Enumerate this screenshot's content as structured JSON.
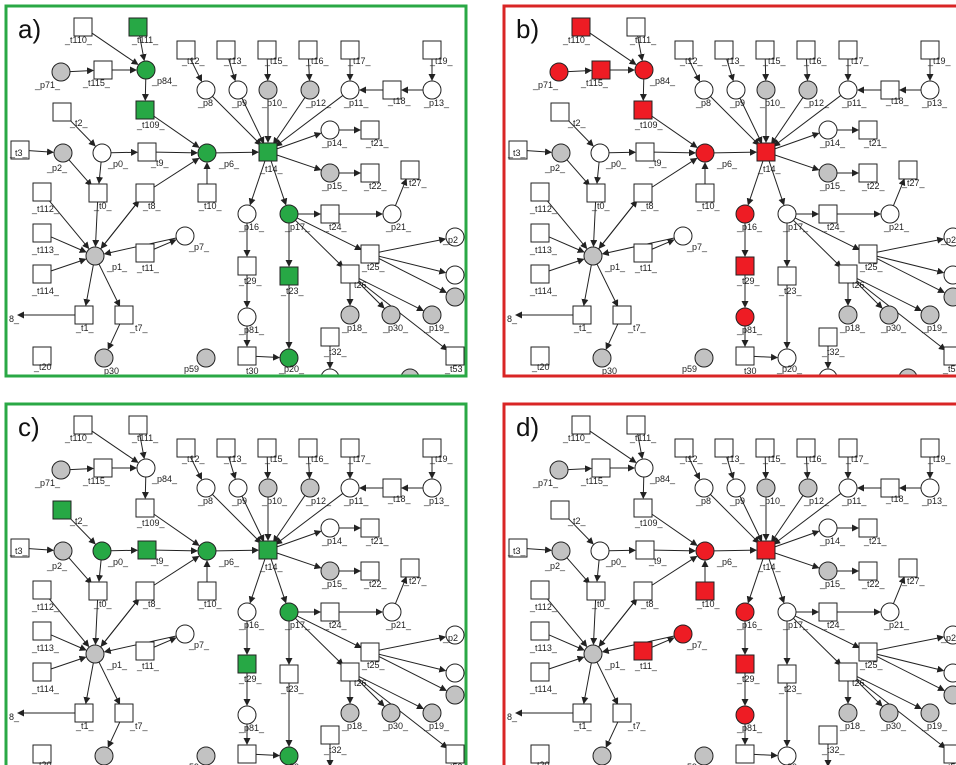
{
  "colors": {
    "green_frame": "#2aa845",
    "red_frame": "#d92525",
    "green_fill": "#27a845",
    "red_fill": "#ee1c24",
    "grey_place": "#c2c2c2",
    "white": "#ffffff",
    "stroke": "#222222"
  },
  "labels": {
    "t110": "_t110_",
    "t111": "_t111_",
    "t115": "_t115_",
    "t109": "_t109_",
    "t2": "_t2_",
    "t3": "_t3_",
    "t9": "_t9_",
    "t0": "_t0_",
    "t8": "_t8_",
    "t10": "_t10_",
    "t112": "_t112_",
    "t113": "_t113_",
    "t114": "_t114_",
    "t11": "_t11_",
    "t1": "_t1_",
    "t7": "_t7_",
    "t20": "_t20",
    "t12": "_t12_",
    "t13": "_t13_",
    "t15": "_t15_",
    "t16": "_t16_",
    "t17": "_t17_",
    "t19": "_t19_",
    "t18": "_t18_",
    "t14": "_t14_",
    "t21": "_t21_",
    "t22": "_t22_",
    "t27": "_t27_",
    "t24": "_t24_",
    "t25": "_t25_",
    "t29": "_t29_",
    "t23": "_t23_",
    "t26": "t26",
    "t30": "_t30",
    "t32": "_t32_",
    "t53": "_t53",
    "p71": "_p71_",
    "p84": "_p84_",
    "p2": "_p2_",
    "p0": "_p0_",
    "p1": "_p1_",
    "p6": "_p6_",
    "p7": "_p7_",
    "p30": "p30",
    "p59": "p59",
    "p8": "_p8",
    "p9": "_p9",
    "p10": "_p10_",
    "p12": "_p12_",
    "p11": "_p11_",
    "p13": "_p13_",
    "p14": "_p14_",
    "p15": "_p15_",
    "p17": "_p17_",
    "p16": "_p16_",
    "p21": "_p21_",
    "p81": "_p81_",
    "p20": "_p20_",
    "p18": "_p18_",
    "p30b": "_p30_",
    "p19": "_p19_",
    "p22": "_p2",
    "t8b": "8_"
  },
  "panels": [
    {
      "letter": "a)",
      "frame": "green",
      "highlighted": [
        "t111",
        "p84",
        "t109",
        "p6",
        "t14",
        "p17",
        "t23",
        "p20"
      ]
    },
    {
      "letter": "b)",
      "frame": "red",
      "highlighted": [
        "t110",
        "p71",
        "t115",
        "p84",
        "t109",
        "p6",
        "t14",
        "p16",
        "t29",
        "p81"
      ]
    },
    {
      "letter": "c)",
      "frame": "green",
      "highlighted": [
        "t2",
        "p0",
        "t9",
        "p6",
        "t14",
        "p17",
        "t29",
        "p20"
      ]
    },
    {
      "letter": "d)",
      "frame": "red",
      "highlighted": [
        "t11",
        "p7",
        "t10",
        "p6",
        "t14",
        "p16",
        "t29",
        "p81"
      ]
    }
  ]
}
